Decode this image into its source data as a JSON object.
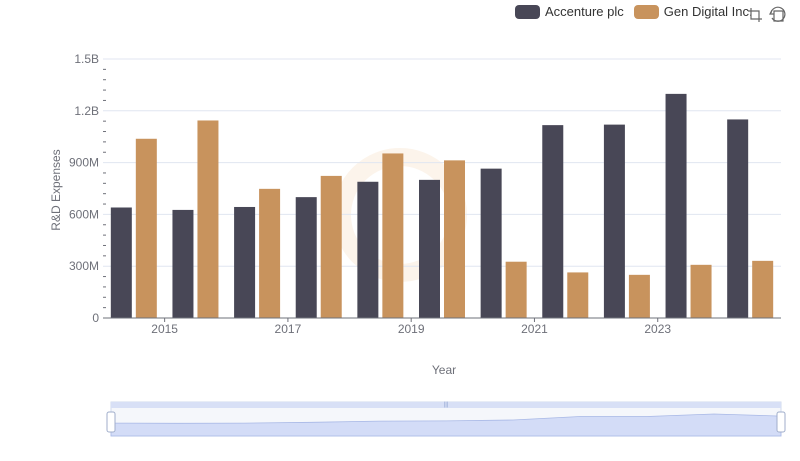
{
  "chart_data": {
    "type": "bar",
    "title": "",
    "xlabel": "Year",
    "ylabel": "R&D Expenses",
    "categories": [
      "2014",
      "2015",
      "2016",
      "2017",
      "2018",
      "2019",
      "2020",
      "2021",
      "2022",
      "2023",
      "2024"
    ],
    "x_tick_labels": [
      "2015",
      "2017",
      "2019",
      "2021",
      "2023"
    ],
    "y_tick_labels": [
      "0",
      "300M",
      "600M",
      "900M",
      "1.2B",
      "1.5B"
    ],
    "y_tick_values": [
      0,
      300000000,
      600000000,
      900000000,
      1200000000,
      1500000000
    ],
    "ylim": [
      0,
      1500000000
    ],
    "series": [
      {
        "name": "Accenture plc",
        "color": "#484756",
        "values": [
          640000000,
          626000000,
          643000000,
          700000000,
          789000000,
          800000000,
          865000000,
          1117000000,
          1120000000,
          1298000000,
          1150000000
        ]
      },
      {
        "name": "Gen Digital Inc.",
        "color": "#c8935d",
        "values": [
          1038000000,
          1144000000,
          748000000,
          823000000,
          953000000,
          913000000,
          326000000,
          264000000,
          250000000,
          308000000,
          331000000
        ]
      }
    ],
    "legend_position": "top-right"
  },
  "legend": {
    "items": [
      {
        "label": "Accenture plc",
        "color": "#484756"
      },
      {
        "label": "Gen Digital Inc.",
        "color": "#c8935d"
      }
    ]
  },
  "toolbox": {
    "icons": [
      "zoom-icon",
      "restore-icon"
    ]
  }
}
